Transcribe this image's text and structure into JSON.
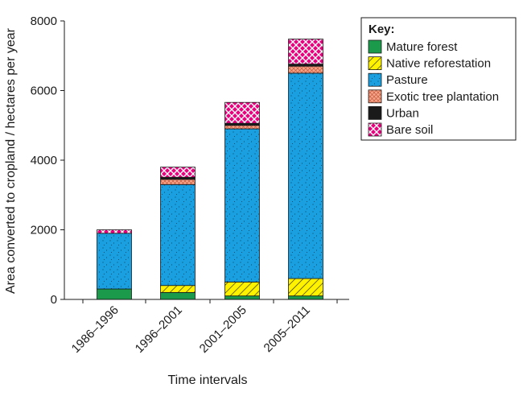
{
  "chart_data": {
    "type": "bar",
    "stacked": true,
    "categories": [
      "1986–1996",
      "1996–2001",
      "2001–2005",
      "2005–2011"
    ],
    "xlabel": "Time intervals",
    "ylabel": "Area converted to cropland / hectares per year",
    "ylim": [
      0,
      8000
    ],
    "yticks": [
      0,
      2000,
      4000,
      6000,
      8000
    ],
    "grid": false,
    "legend": {
      "title": "Key:",
      "placement": "top-right"
    },
    "series": [
      {
        "name": "Mature forest",
        "color": "#1b9a4b",
        "pattern": "solid",
        "values": [
          300,
          200,
          100,
          100
        ]
      },
      {
        "name": "Native reforestation",
        "color": "#fff200",
        "pattern": "diagonal-hatch",
        "values": [
          0,
          200,
          400,
          500
        ]
      },
      {
        "name": "Pasture",
        "color": "#1aa0e0",
        "pattern": "stipple",
        "values": [
          1600,
          2900,
          4400,
          5900
        ]
      },
      {
        "name": "Exotic tree plantation",
        "color": "#f4a58a",
        "pattern": "crosshatch",
        "values": [
          0,
          150,
          100,
          200
        ]
      },
      {
        "name": "Urban",
        "color": "#1a1a1a",
        "pattern": "solid",
        "values": [
          0,
          60,
          60,
          60
        ]
      },
      {
        "name": "Bare soil",
        "color": "#e6007e",
        "pattern": "lattice",
        "values": [
          100,
          290,
          600,
          720
        ]
      }
    ]
  }
}
